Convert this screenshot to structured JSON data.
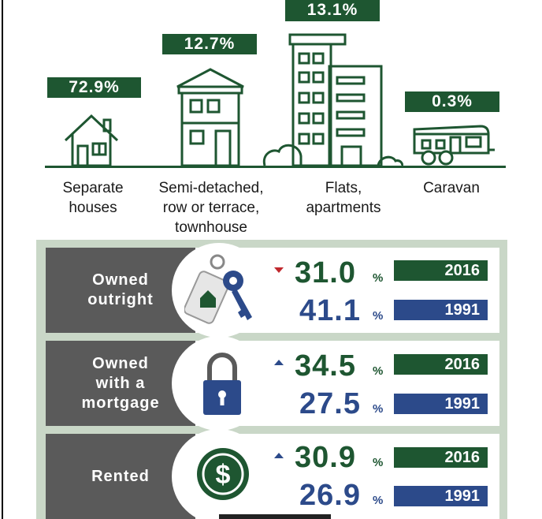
{
  "dwellings": [
    {
      "percent": "72.9%",
      "label_lines": [
        "Separate",
        "houses"
      ],
      "icon": "house-icon"
    },
    {
      "percent": "12.7%",
      "label_lines": [
        "Semi-detached,",
        "row or terrace,",
        "townhouse"
      ],
      "icon": "townhouse-icon"
    },
    {
      "percent": "13.1%",
      "label_lines": [
        "Flats,",
        "apartments"
      ],
      "icon": "apartment-building-icon"
    },
    {
      "percent": "0.3%",
      "label_lines": [
        "Caravan"
      ],
      "icon": "caravan-icon"
    }
  ],
  "tenure": [
    {
      "label_lines": [
        "Owned",
        "outright"
      ],
      "icon": "keys-icon",
      "trend": "down",
      "current": {
        "value": "31.0",
        "unit": "%",
        "year": "2016"
      },
      "previous": {
        "value": "41.1",
        "unit": "%",
        "year": "1991"
      }
    },
    {
      "label_lines": [
        "Owned",
        "with a",
        "mortgage"
      ],
      "icon": "padlock-icon",
      "trend": "up",
      "current": {
        "value": "34.5",
        "unit": "%",
        "year": "2016"
      },
      "previous": {
        "value": "27.5",
        "unit": "%",
        "year": "1991"
      }
    },
    {
      "label_lines": [
        "Rented"
      ],
      "icon": "dollar-coin-icon",
      "trend": "up",
      "current": {
        "value": "30.9",
        "unit": "%",
        "year": "2016"
      },
      "previous": {
        "value": "26.9",
        "unit": "%",
        "year": "1991"
      }
    }
  ],
  "colors": {
    "green": "#1e5631",
    "blue": "#2c4a8a",
    "grey": "#5a5a5a",
    "panel": "#c9d7c7",
    "down": "#c0282d"
  }
}
